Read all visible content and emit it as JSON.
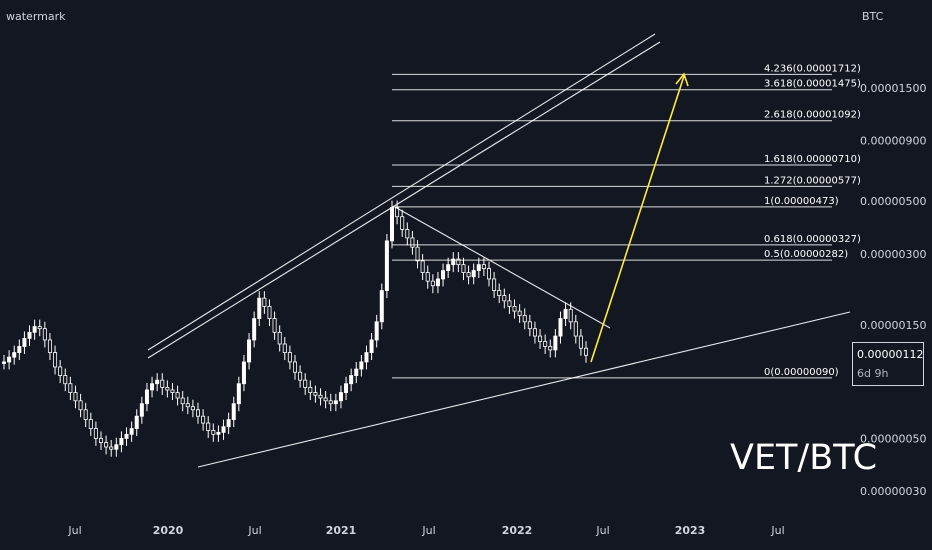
{
  "watermark": "watermark",
  "currency": "BTC",
  "pair_label": "VET/BTC",
  "last_price": "0.00000112",
  "countdown": "6d 9h",
  "colors": {
    "background": "#131722",
    "candle": "#ffffff",
    "trendline": "#ffffff",
    "target_arrow": "#ffeb3b",
    "text": "#d1d4dc"
  },
  "chart_data": {
    "type": "candlestick",
    "scale": "log",
    "x_tick_labels": [
      "Jul",
      "2020",
      "Jul",
      "2021",
      "Jul",
      "2022",
      "Jul",
      "2023",
      "Jul"
    ],
    "y_tick_labels": [
      "0.00001500",
      "0.00000900",
      "0.00000500",
      "0.00000300",
      "0.00000150",
      "0.00000050",
      "0.00000030"
    ],
    "y_range": [
      2.7e-07,
      2.4e-06
    ],
    "fib_levels": [
      {
        "label": "4.236(0.00001712)",
        "value": 1.712e-05
      },
      {
        "label": "3.618(0.00001475)",
        "value": 1.475e-05
      },
      {
        "label": "2.618(0.00001092)",
        "value": 1.092e-05
      },
      {
        "label": "1.618(0.00000710)",
        "value": 7.1e-06
      },
      {
        "label": "1.272(0.00000577)",
        "value": 5.77e-06
      },
      {
        "label": "1(0.00000473)",
        "value": 4.73e-06
      },
      {
        "label": "0.618(0.00000327)",
        "value": 3.27e-06
      },
      {
        "label": "0.5(0.00000282)",
        "value": 2.82e-06
      },
      {
        "label": "0(0.00000090)",
        "value": 9e-07
      }
    ],
    "series": [
      {
        "values": [
          1.05,
          1.1,
          1.15,
          1.22,
          1.32,
          1.4,
          1.48,
          1.45,
          1.3,
          1.15,
          1.0,
          0.92,
          0.85,
          0.78,
          0.72,
          0.66,
          0.6,
          0.55,
          0.5,
          0.48,
          0.46,
          0.45,
          0.47,
          0.5,
          0.52,
          0.55,
          0.62,
          0.7,
          0.8,
          0.85,
          0.88,
          0.82,
          0.8,
          0.78,
          0.74,
          0.7,
          0.68,
          0.66,
          0.62,
          0.58,
          0.54,
          0.52,
          0.53,
          0.56,
          0.6,
          0.7,
          0.85,
          1.05,
          1.3,
          1.6,
          1.95,
          1.8,
          1.6,
          1.4,
          1.25,
          1.15,
          1.05,
          0.95,
          0.88,
          0.82,
          0.78,
          0.76,
          0.74,
          0.72,
          0.7,
          0.72,
          0.78,
          0.85,
          0.92,
          0.98,
          1.05,
          1.15,
          1.3,
          1.55,
          2.1,
          3.4,
          4.7,
          4.3,
          3.8,
          3.5,
          3.2,
          2.8,
          2.5,
          2.3,
          2.2,
          2.35,
          2.55,
          2.7,
          2.85,
          2.7,
          2.5,
          2.4,
          2.55,
          2.7,
          2.6,
          2.35,
          2.1,
          2.0,
          1.9,
          1.8,
          1.72,
          1.65,
          1.55,
          1.45,
          1.35,
          1.28,
          1.22,
          1.18,
          1.35,
          1.6,
          1.75,
          1.55,
          1.35,
          1.2,
          1.12
        ]
      }
    ]
  }
}
